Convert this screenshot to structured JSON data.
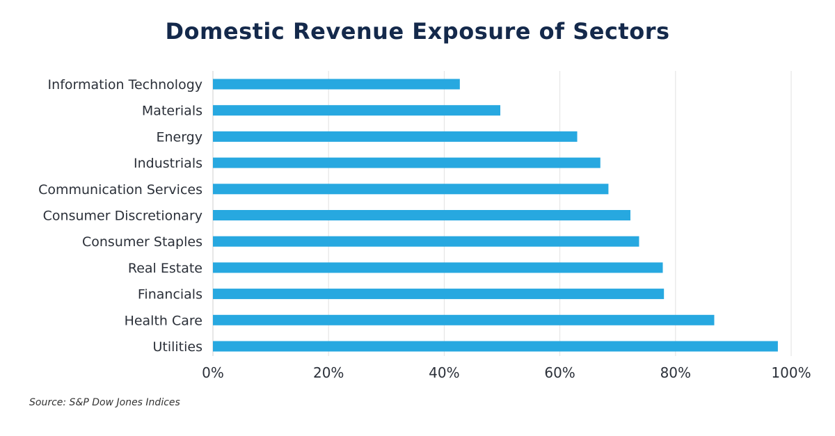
{
  "chart_data": {
    "type": "bar",
    "orientation": "horizontal",
    "title": "Domestic Revenue Exposure of Sectors",
    "categories": [
      "Information Technology",
      "Materials",
      "Energy",
      "Industrials",
      "Communication Services",
      "Consumer Discretionary",
      "Consumer Staples",
      "Real Estate",
      "Financials",
      "Health Care",
      "Utilities"
    ],
    "values": [
      42.7,
      49.7,
      63.0,
      67.0,
      68.4,
      72.2,
      73.7,
      77.8,
      78.0,
      86.7,
      97.7
    ],
    "xlim": [
      0,
      100
    ],
    "xticks": [
      "0%",
      "20%",
      "40%",
      "60%",
      "80%",
      "100%"
    ],
    "xlabel": "",
    "ylabel": "",
    "grid": "vertical",
    "bar_color": "#27a8e0",
    "source": "Source: S&P Dow Jones Indices"
  }
}
